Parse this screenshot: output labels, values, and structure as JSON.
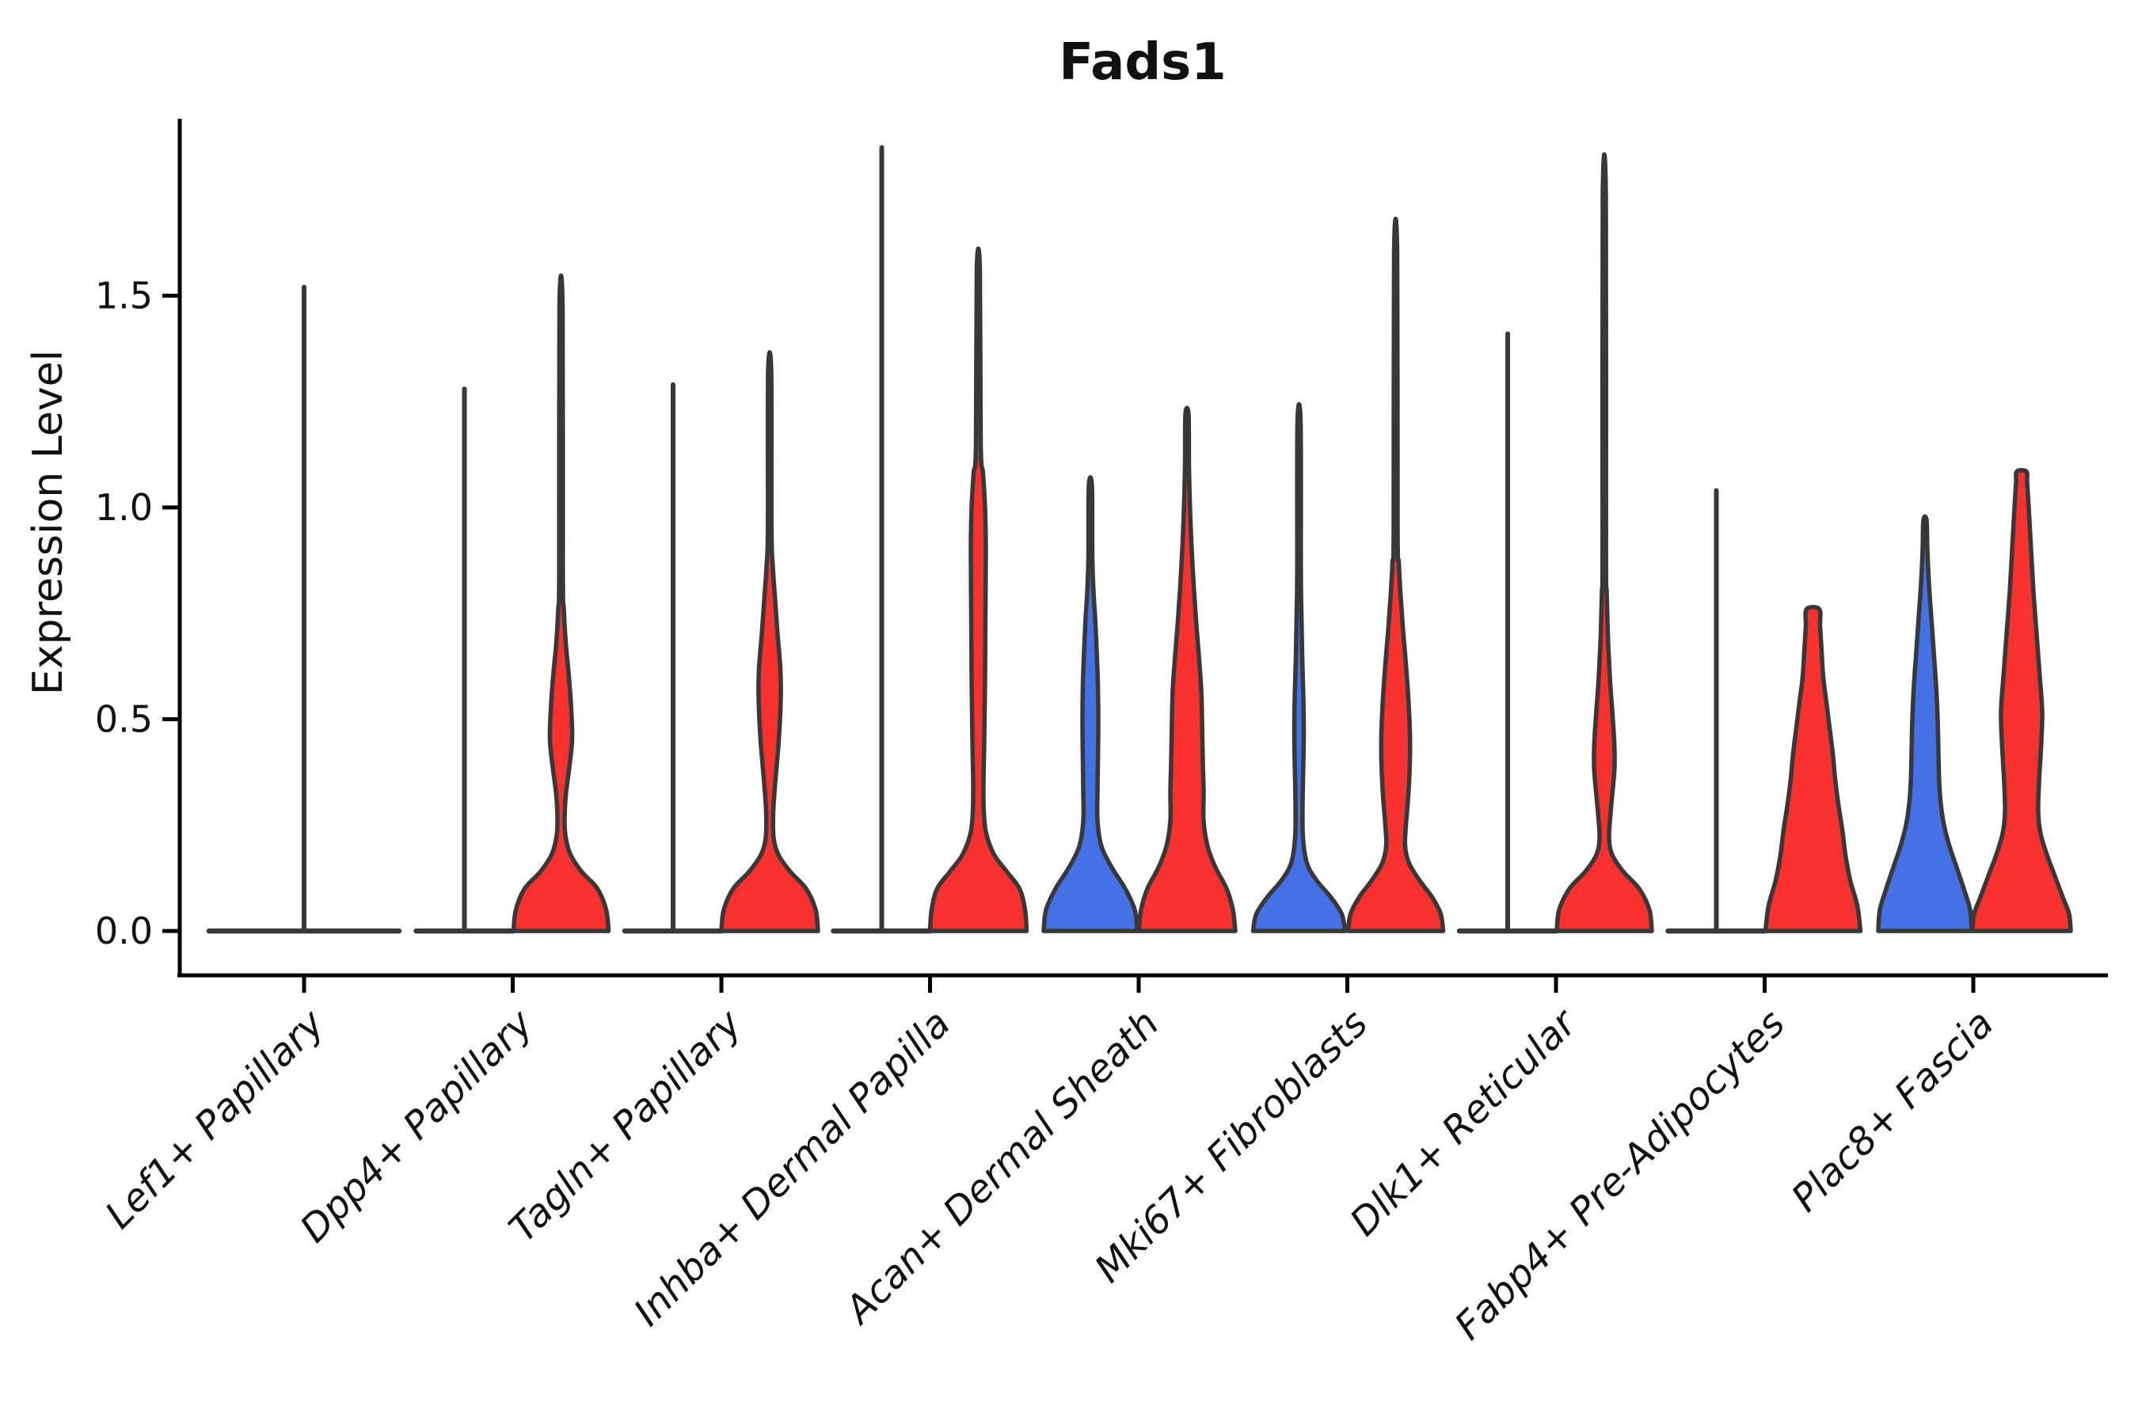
{
  "chart_data": {
    "type": "violin",
    "title": "Fads1",
    "xlabel": "",
    "ylabel": "Expression Level",
    "ylim": [
      -0.07,
      1.95
    ],
    "yticks": [
      {
        "value": 0.0,
        "label": "0.0"
      },
      {
        "value": 0.5,
        "label": "0.5"
      },
      {
        "value": 1.0,
        "label": "1.0"
      },
      {
        "value": 1.5,
        "label": "1.5"
      }
    ],
    "grid": false,
    "legend": "none",
    "groups": [
      {
        "id": "group-blue",
        "color": "#4471E6"
      },
      {
        "id": "group-red",
        "color": "#F8312F"
      }
    ],
    "outline_color": "#383838",
    "categories": [
      {
        "label": "Lef1+ Papillary",
        "violins": [
          {
            "group": "single",
            "style": "flat",
            "color": null,
            "offset": 0,
            "base_halfwidth": 120,
            "max": 1.52
          }
        ]
      },
      {
        "label": "Dpp4+ Papillary",
        "violins": [
          {
            "group": "group-blue",
            "style": "flat",
            "color": null,
            "offset": -61,
            "base_halfwidth": 61,
            "max": 1.28
          },
          {
            "group": "group-red",
            "style": "filled",
            "color": "#F8312F",
            "offset": 61,
            "max": 1.47,
            "profile": [
              [
                0,
                60
              ],
              [
                0.05,
                57
              ],
              [
                0.1,
                46
              ],
              [
                0.14,
                26
              ],
              [
                0.18,
                12
              ],
              [
                0.22,
                6
              ],
              [
                0.26,
                4.5
              ],
              [
                0.32,
                6
              ],
              [
                0.38,
                10
              ],
              [
                0.45,
                14
              ],
              [
                0.52,
                13
              ],
              [
                0.6,
                10
              ],
              [
                0.68,
                6
              ],
              [
                0.76,
                3.5
              ],
              [
                0.85,
                2.3
              ],
              [
                1.47,
                2
              ]
            ]
          }
        ]
      },
      {
        "label": "Tagln+ Papillary",
        "violins": [
          {
            "group": "group-blue",
            "style": "flat",
            "color": null,
            "offset": -61,
            "base_halfwidth": 61,
            "max": 1.29
          },
          {
            "group": "group-red",
            "style": "filled",
            "color": "#F8312F",
            "offset": 61,
            "max": 1.32,
            "profile": [
              [
                0,
                61
              ],
              [
                0.05,
                58
              ],
              [
                0.1,
                46
              ],
              [
                0.14,
                26
              ],
              [
                0.18,
                11
              ],
              [
                0.22,
                5
              ],
              [
                0.28,
                4.5
              ],
              [
                0.35,
                7
              ],
              [
                0.45,
                11.5
              ],
              [
                0.55,
                14
              ],
              [
                0.62,
                13.5
              ],
              [
                0.7,
                10
              ],
              [
                0.78,
                7
              ],
              [
                0.86,
                4
              ],
              [
                0.95,
                2.3
              ],
              [
                1.32,
                2
              ]
            ]
          }
        ]
      },
      {
        "label": "Inhba+ Dermal Papilla",
        "violins": [
          {
            "group": "group-blue",
            "style": "flat",
            "color": null,
            "offset": -61,
            "base_halfwidth": 61,
            "max": 1.85
          },
          {
            "group": "group-red",
            "style": "filled",
            "color": "#F8312F",
            "offset": 61,
            "max": 1.56,
            "profile": [
              [
                0,
                61
              ],
              [
                0.05,
                59
              ],
              [
                0.1,
                52
              ],
              [
                0.14,
                36
              ],
              [
                0.18,
                20
              ],
              [
                0.23,
                10
              ],
              [
                0.28,
                7
              ],
              [
                0.35,
                6.5
              ],
              [
                0.45,
                7.5
              ],
              [
                0.6,
                8.5
              ],
              [
                0.75,
                9
              ],
              [
                0.9,
                9.5
              ],
              [
                1.0,
                8.5
              ],
              [
                1.08,
                6
              ],
              [
                1.15,
                3
              ],
              [
                1.56,
                2
              ]
            ]
          }
        ]
      },
      {
        "label": "Acan+ Dermal Sheath",
        "violins": [
          {
            "group": "group-blue",
            "style": "filled",
            "color": "#4471E6",
            "offset": -61,
            "max": 1.05,
            "profile": [
              [
                0,
                59
              ],
              [
                0.05,
                56
              ],
              [
                0.1,
                44
              ],
              [
                0.15,
                27
              ],
              [
                0.2,
                14
              ],
              [
                0.26,
                9
              ],
              [
                0.33,
                9
              ],
              [
                0.4,
                9.5
              ],
              [
                0.49,
                10
              ],
              [
                0.58,
                9.5
              ],
              [
                0.66,
                8
              ],
              [
                0.74,
                6
              ],
              [
                0.8,
                4
              ],
              [
                0.88,
                2.5
              ],
              [
                1.05,
                2
              ]
            ]
          },
          {
            "group": "group-red",
            "style": "filled",
            "color": "#F8312F",
            "offset": 61,
            "max": 1.22,
            "profile": [
              [
                0,
                61
              ],
              [
                0.05,
                58
              ],
              [
                0.1,
                50
              ],
              [
                0.15,
                36
              ],
              [
                0.2,
                26
              ],
              [
                0.26,
                21
              ],
              [
                0.33,
                21
              ],
              [
                0.4,
                20
              ],
              [
                0.5,
                19
              ],
              [
                0.57,
                18
              ],
              [
                0.65,
                15
              ],
              [
                0.72,
                12
              ],
              [
                0.8,
                9
              ],
              [
                0.9,
                6
              ],
              [
                0.99,
                4
              ],
              [
                1.1,
                2.5
              ],
              [
                1.22,
                2
              ]
            ]
          }
        ]
      },
      {
        "label": "Mki67+ Fibroblasts",
        "violins": [
          {
            "group": "group-blue",
            "style": "filled",
            "color": "#4471E6",
            "offset": -61,
            "max": 1.2,
            "profile": [
              [
                0,
                58
              ],
              [
                0.04,
                54
              ],
              [
                0.08,
                40
              ],
              [
                0.12,
                22
              ],
              [
                0.16,
                10
              ],
              [
                0.22,
                5
              ],
              [
                0.3,
                4.5
              ],
              [
                0.4,
                5.5
              ],
              [
                0.47,
                6
              ],
              [
                0.55,
                5.5
              ],
              [
                0.65,
                4
              ],
              [
                0.75,
                3
              ],
              [
                0.85,
                2.3
              ],
              [
                1.2,
                2
              ]
            ]
          },
          {
            "group": "group-red",
            "style": "filled",
            "color": "#F8312F",
            "offset": 61,
            "max": 1.6,
            "profile": [
              [
                0,
                60
              ],
              [
                0.04,
                57
              ],
              [
                0.08,
                46
              ],
              [
                0.12,
                30
              ],
              [
                0.16,
                17
              ],
              [
                0.2,
                12
              ],
              [
                0.25,
                13
              ],
              [
                0.32,
                16
              ],
              [
                0.4,
                18
              ],
              [
                0.47,
                18
              ],
              [
                0.55,
                16
              ],
              [
                0.63,
                13
              ],
              [
                0.72,
                9
              ],
              [
                0.8,
                6
              ],
              [
                0.87,
                4
              ],
              [
                0.95,
                2.5
              ],
              [
                1.6,
                2
              ]
            ]
          }
        ]
      },
      {
        "label": "Dlk1+ Reticular",
        "violins": [
          {
            "group": "group-blue",
            "style": "flat",
            "color": null,
            "offset": -61,
            "base_halfwidth": 61,
            "max": 1.41
          },
          {
            "group": "group-red",
            "style": "filled",
            "color": "#F8312F",
            "offset": 61,
            "max": 1.73,
            "profile": [
              [
                0,
                60
              ],
              [
                0.05,
                57
              ],
              [
                0.1,
                44
              ],
              [
                0.14,
                24
              ],
              [
                0.18,
                10
              ],
              [
                0.22,
                6
              ],
              [
                0.28,
                8
              ],
              [
                0.34,
                11
              ],
              [
                0.39,
                13
              ],
              [
                0.45,
                12.5
              ],
              [
                0.52,
                10
              ],
              [
                0.6,
                7
              ],
              [
                0.7,
                4.5
              ],
              [
                0.8,
                3
              ],
              [
                0.9,
                2.2
              ],
              [
                1.73,
                2
              ]
            ]
          }
        ]
      },
      {
        "label": "Fabp4+ Pre-Adipocytes",
        "violins": [
          {
            "group": "group-blue",
            "style": "flat",
            "color": null,
            "offset": -61,
            "base_halfwidth": 61,
            "max": 1.04
          },
          {
            "group": "group-red",
            "style": "filled",
            "color": "#F8312F",
            "offset": 61,
            "max": 0.76,
            "profile": [
              [
                0,
                60
              ],
              [
                0.06,
                56
              ],
              [
                0.12,
                47
              ],
              [
                0.18,
                41
              ],
              [
                0.24,
                37
              ],
              [
                0.3,
                32
              ],
              [
                0.36,
                28
              ],
              [
                0.42,
                25
              ],
              [
                0.48,
                21
              ],
              [
                0.54,
                17
              ],
              [
                0.6,
                13
              ],
              [
                0.66,
                11
              ],
              [
                0.72,
                9
              ],
              [
                0.76,
                8
              ]
            ]
          }
        ]
      },
      {
        "label": "Plac8+ Fascia",
        "violins": [
          {
            "group": "group-blue",
            "style": "filled",
            "color": "#4471E6",
            "offset": -61,
            "max": 0.97,
            "profile": [
              [
                0,
                59
              ],
              [
                0.05,
                57
              ],
              [
                0.1,
                49
              ],
              [
                0.15,
                40
              ],
              [
                0.2,
                31
              ],
              [
                0.25,
                24
              ],
              [
                0.3,
                20
              ],
              [
                0.35,
                18
              ],
              [
                0.42,
                17
              ],
              [
                0.5,
                16
              ],
              [
                0.58,
                14
              ],
              [
                0.66,
                11
              ],
              [
                0.74,
                8
              ],
              [
                0.82,
                5
              ],
              [
                0.9,
                3
              ],
              [
                0.97,
                2
              ]
            ]
          },
          {
            "group": "group-red",
            "style": "filled",
            "color": "#F8312F",
            "offset": 61,
            "max": 1.085,
            "profile": [
              [
                0,
                62
              ],
              [
                0.04,
                60
              ],
              [
                0.08,
                52
              ],
              [
                0.13,
                42
              ],
              [
                0.18,
                32
              ],
              [
                0.23,
                24
              ],
              [
                0.28,
                21
              ],
              [
                0.35,
                22
              ],
              [
                0.45,
                25
              ],
              [
                0.52,
                26
              ],
              [
                0.6,
                23
              ],
              [
                0.7,
                19
              ],
              [
                0.8,
                15
              ],
              [
                0.9,
                12
              ],
              [
                1.0,
                9
              ],
              [
                1.06,
                7
              ],
              [
                1.085,
                6
              ]
            ]
          }
        ]
      }
    ]
  }
}
